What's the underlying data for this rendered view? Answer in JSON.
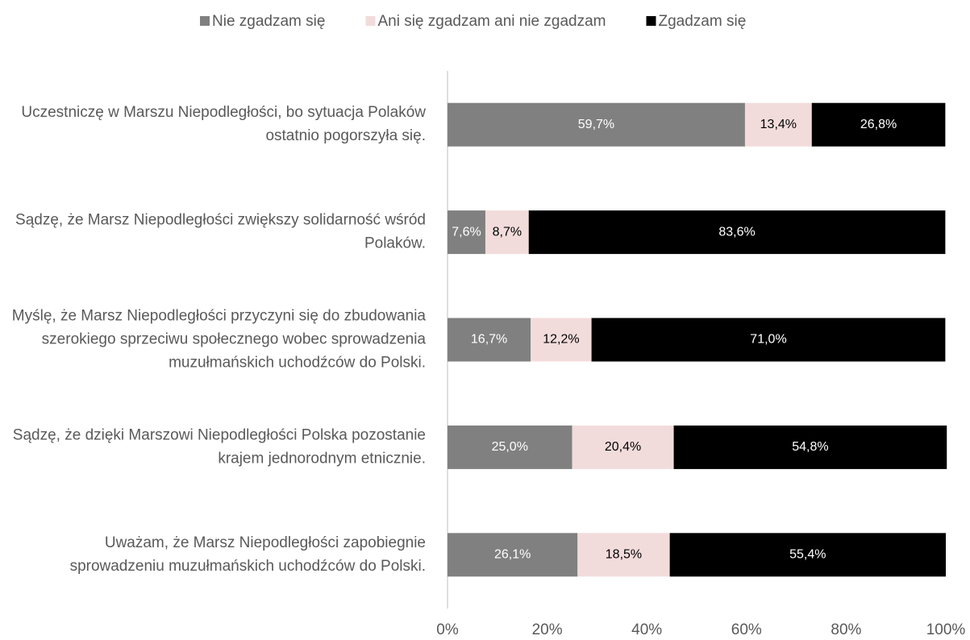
{
  "chart_data": {
    "type": "stacked_bar_horizontal",
    "categories": [
      "Uczestniczę w Marszu Niepodległości, bo sytuacja Polaków ostatnio pogorszyła się.",
      "Sądzę, że Marsz Niepodległości zwiększy solidarność wśród Polaków.",
      "Myślę, że Marsz Niepodległości przyczyni się do zbudowania szerokiego sprzeciwu społecznego wobec sprowadzenia muzułmańskich uchodźców do Polski.",
      "Sądzę, że dzięki Marszowi Niepodległości Polska pozostanie krajem jednorodnym etnicznie.",
      "Uważam, że Marsz Niepodległości zapobiegnie sprowadzeniu muzułmańskich uchodźców do Polski."
    ],
    "series": [
      {
        "name": "Nie zgadzam się",
        "color": "#808080",
        "values": [
          59.7,
          7.6,
          16.7,
          25.0,
          26.1
        ],
        "value_labels": [
          "59,7%",
          "7,6%",
          "16,7%",
          "25,0%",
          "26,1%"
        ]
      },
      {
        "name": "Ani się zgadzam ani nie zgadzam",
        "color": "#f2dcdb",
        "values": [
          13.4,
          8.7,
          12.2,
          20.4,
          18.5
        ],
        "value_labels": [
          "13,4%",
          "8,7%",
          "12,2%",
          "20,4%",
          "18,5%"
        ]
      },
      {
        "name": "Zgadzam się",
        "color": "#000000",
        "values": [
          26.8,
          83.6,
          71.0,
          54.8,
          55.4
        ],
        "value_labels": [
          "26,8%",
          "83,6%",
          "71,0%",
          "54,8%",
          "55,4%"
        ]
      }
    ],
    "xlim": [
      0,
      100
    ],
    "xticks": [
      {
        "value": 0,
        "label": "0%"
      },
      {
        "value": 20,
        "label": "20%"
      },
      {
        "value": 40,
        "label": "40%"
      },
      {
        "value": 60,
        "label": "60%"
      },
      {
        "value": 80,
        "label": "80%"
      },
      {
        "value": 100,
        "label": "100%"
      }
    ],
    "legend": "top"
  }
}
